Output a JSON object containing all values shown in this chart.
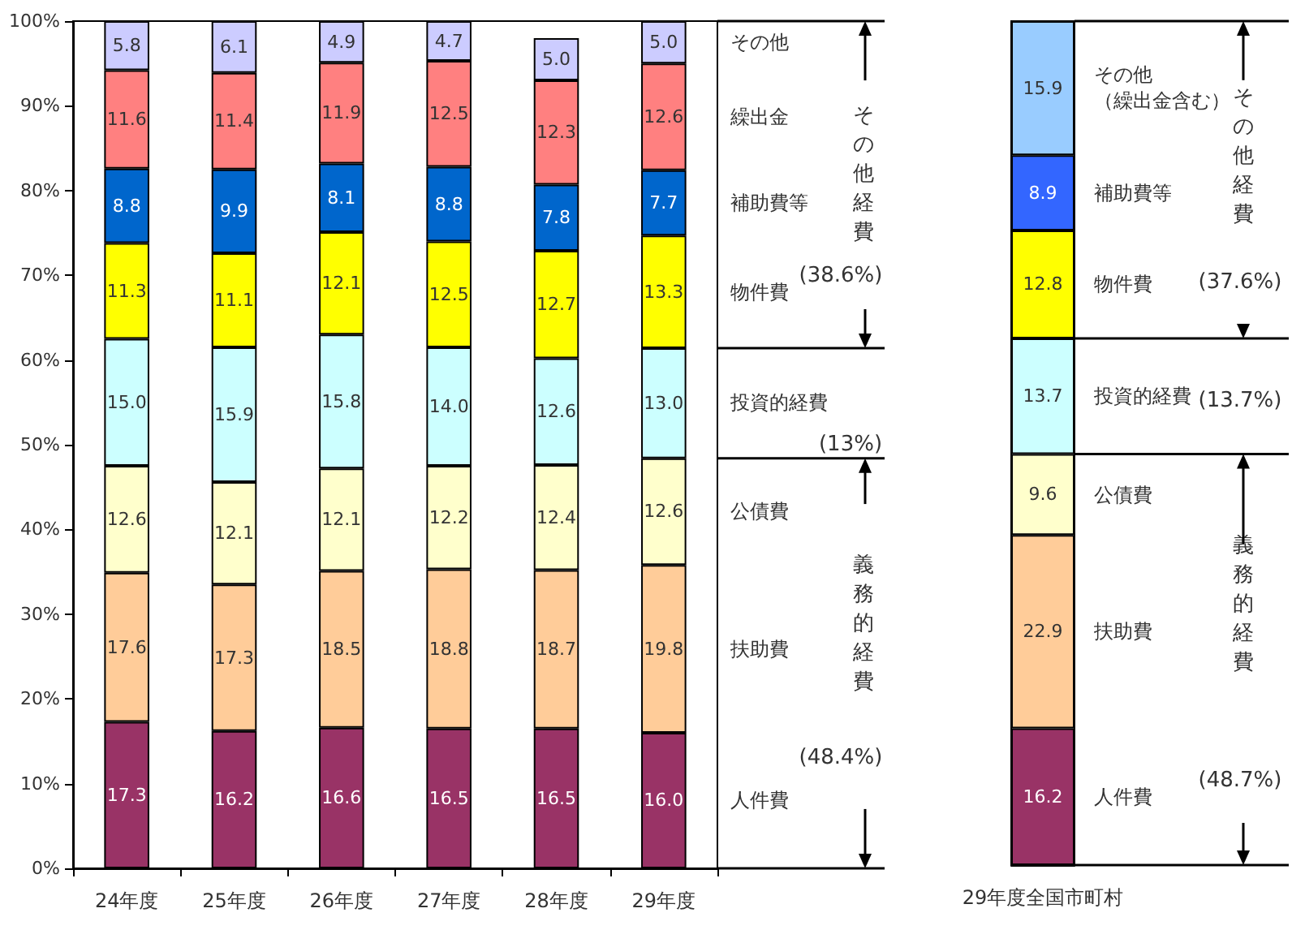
{
  "chart_data": [
    {
      "type": "bar",
      "stacked": true,
      "categories": [
        "24年度",
        "25年度",
        "26年度",
        "27年度",
        "28年度",
        "29年度"
      ],
      "ylim": [
        0,
        100
      ],
      "yticks": [
        {
          "value": 0,
          "label": "0%"
        },
        {
          "value": 10,
          "label": "10%"
        },
        {
          "value": 20,
          "label": "20%"
        },
        {
          "value": 30,
          "label": "30%"
        },
        {
          "value": 40,
          "label": "40%"
        },
        {
          "value": 50,
          "label": "50%"
        },
        {
          "value": 60,
          "label": "60%"
        },
        {
          "value": 70,
          "label": "70%"
        },
        {
          "value": 80,
          "label": "80%"
        },
        {
          "value": 90,
          "label": "90%"
        },
        {
          "value": 100,
          "label": "100%"
        }
      ],
      "series": [
        {
          "name": "人件費",
          "color": "#993366",
          "values": [
            17.3,
            16.2,
            16.6,
            16.5,
            16.5,
            16.0
          ],
          "value_labels": [
            "17.3",
            "16.2",
            "16.6",
            "16.5",
            "16.5",
            "16.0"
          ]
        },
        {
          "name": "扶助費",
          "color": "#ffcc99",
          "values": [
            17.6,
            17.3,
            18.5,
            18.8,
            18.7,
            19.8
          ],
          "value_labels": [
            "17.6",
            "17.3",
            "18.5",
            "18.8",
            "18.7",
            "19.8"
          ]
        },
        {
          "name": "公債費",
          "color": "#ffffcc",
          "values": [
            12.6,
            12.1,
            12.1,
            12.2,
            12.4,
            12.6
          ],
          "value_labels": [
            "12.6",
            "12.1",
            "12.1",
            "12.2",
            "12.4",
            "12.6"
          ]
        },
        {
          "name": "投資的経費",
          "color": "#ccffff",
          "values": [
            15.0,
            15.9,
            15.8,
            14.0,
            12.6,
            13.0
          ],
          "value_labels": [
            "15.0",
            "15.9",
            "15.8",
            "14.0",
            "12.6",
            "13.0"
          ]
        },
        {
          "name": "物件費",
          "color": "#ffff00",
          "values": [
            11.3,
            11.1,
            12.1,
            12.5,
            12.7,
            13.3
          ],
          "value_labels": [
            "11.3",
            "11.1",
            "12.1",
            "12.5",
            "12.7",
            "13.3"
          ]
        },
        {
          "name": "補助費等",
          "color": "#0066cc",
          "values": [
            8.8,
            9.9,
            8.1,
            8.8,
            7.8,
            7.7
          ],
          "value_labels": [
            "8.8",
            "9.9",
            "8.1",
            "8.8",
            "7.8",
            "7.7"
          ]
        },
        {
          "name": "繰出金",
          "color": "#ff8080",
          "values": [
            11.6,
            11.4,
            11.9,
            12.5,
            12.3,
            12.6
          ],
          "value_labels": [
            "11.6",
            "11.4",
            "11.9",
            "12.5",
            "12.3",
            "12.6"
          ]
        },
        {
          "name": "その他",
          "color": "#ccccff",
          "values": [
            5.8,
            6.1,
            4.9,
            4.7,
            5.0,
            5.0
          ],
          "value_labels": [
            "5.8",
            "6.1",
            "4.9",
            "4.7",
            "5.0",
            "5.0"
          ]
        }
      ],
      "annotations": [
        "その他経費",
        "(38.6%)",
        "(13%)",
        "義務的経費",
        "(48.4%)"
      ]
    },
    {
      "type": "bar",
      "stacked": true,
      "categories": [
        "29年度全国市町村"
      ],
      "ylim": [
        0,
        100
      ],
      "tick_labels": "x",
      "series": [
        {
          "name": "人件費",
          "color": "#993366",
          "values": [
            16.2
          ],
          "value_labels": [
            "16.2"
          ]
        },
        {
          "name": "扶助費",
          "color": "#ffcc99",
          "values": [
            22.9
          ],
          "value_labels": [
            "22.9"
          ]
        },
        {
          "name": "公債費",
          "color": "#ffffcc",
          "values": [
            9.6
          ],
          "value_labels": [
            "9.6"
          ]
        },
        {
          "name": "投資的経費",
          "color": "#ccffff",
          "values": [
            13.7
          ],
          "value_labels": [
            "13.7"
          ]
        },
        {
          "name": "物件費",
          "color": "#ffff00",
          "values": [
            12.8
          ],
          "value_labels": [
            "12.8"
          ]
        },
        {
          "name": "補助費等",
          "color": "#3366ff",
          "values": [
            8.9
          ],
          "value_labels": [
            "8.9"
          ]
        },
        {
          "name": "その他（繰出金含む）",
          "color": "#99ccff",
          "values": [
            15.9
          ],
          "value_labels": [
            "15.9"
          ]
        }
      ],
      "annotations": [
        "その他経費",
        "(37.6%)",
        "(13.7%)",
        "義務的経費",
        "(48.7%)"
      ]
    }
  ]
}
